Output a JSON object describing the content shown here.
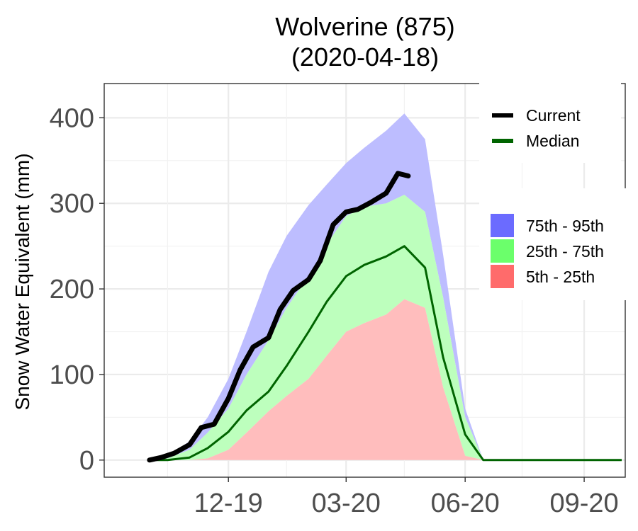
{
  "chart_data": {
    "type": "area",
    "title": "Wolverine (875)",
    "subtitle": "(2020-04-18)",
    "xlabel": "",
    "ylabel": "Snow Water Equivalent (mm)",
    "x_ticks": [
      "12-19",
      "03-20",
      "06-20",
      "09-20"
    ],
    "y_ticks": [
      0,
      100,
      200,
      300,
      400
    ],
    "ylim": [
      -20,
      440
    ],
    "grid": true,
    "legend": [
      {
        "name": "Current",
        "kind": "line",
        "color": "#000000"
      },
      {
        "name": "Median",
        "kind": "line",
        "color": "#006400"
      },
      {
        "name": "75th - 95th",
        "kind": "fill",
        "color": "#6b6bff"
      },
      {
        "name": "25th - 75th",
        "kind": "fill",
        "color": "#6bff6b"
      },
      {
        "name": "5th - 25th",
        "kind": "fill",
        "color": "#ff6b6b"
      }
    ],
    "legend_position": "right",
    "colors": {
      "band_75_95": "#bdbdff",
      "band_25_75": "#bdffbd",
      "band_5_25": "#ffbdbd",
      "current": "#000000",
      "median": "#006400"
    },
    "dates": [
      "10-01",
      "10-15",
      "11-01",
      "11-15",
      "12-01",
      "12-15",
      "01-01",
      "01-15",
      "02-01",
      "02-15",
      "03-01",
      "03-15",
      "04-01",
      "04-15",
      "05-01",
      "05-15",
      "06-01",
      "06-15",
      "07-01",
      "09-30"
    ],
    "p95": [
      0,
      5,
      22,
      50,
      95,
      150,
      220,
      262,
      298,
      322,
      347,
      365,
      385,
      405,
      375,
      240,
      60,
      0,
      0,
      0
    ],
    "p75": [
      0,
      2,
      12,
      32,
      60,
      100,
      140,
      178,
      215,
      252,
      285,
      296,
      300,
      310,
      290,
      190,
      50,
      0,
      0,
      0
    ],
    "median": [
      0,
      0,
      3,
      14,
      33,
      58,
      80,
      110,
      150,
      185,
      215,
      228,
      238,
      250,
      225,
      120,
      30,
      0,
      0,
      0
    ],
    "p25": [
      0,
      0,
      0,
      2,
      12,
      32,
      57,
      75,
      95,
      122,
      150,
      160,
      170,
      188,
      178,
      85,
      5,
      0,
      0,
      0
    ],
    "p05": [
      0,
      0,
      0,
      0,
      0,
      0,
      0,
      0,
      0,
      0,
      0,
      0,
      0,
      0,
      0,
      0,
      0,
      0,
      0,
      0
    ],
    "current_dates": [
      "10-01",
      "10-10",
      "10-20",
      "11-01",
      "11-10",
      "11-20",
      "12-01",
      "12-10",
      "12-20",
      "01-01",
      "01-10",
      "01-20",
      "02-01",
      "02-10",
      "02-20",
      "03-01",
      "03-10",
      "03-20",
      "04-01",
      "04-10",
      "04-18"
    ],
    "current": [
      0,
      3,
      8,
      18,
      38,
      42,
      72,
      105,
      132,
      143,
      176,
      198,
      211,
      233,
      275,
      290,
      293,
      301,
      312,
      335,
      332
    ]
  }
}
